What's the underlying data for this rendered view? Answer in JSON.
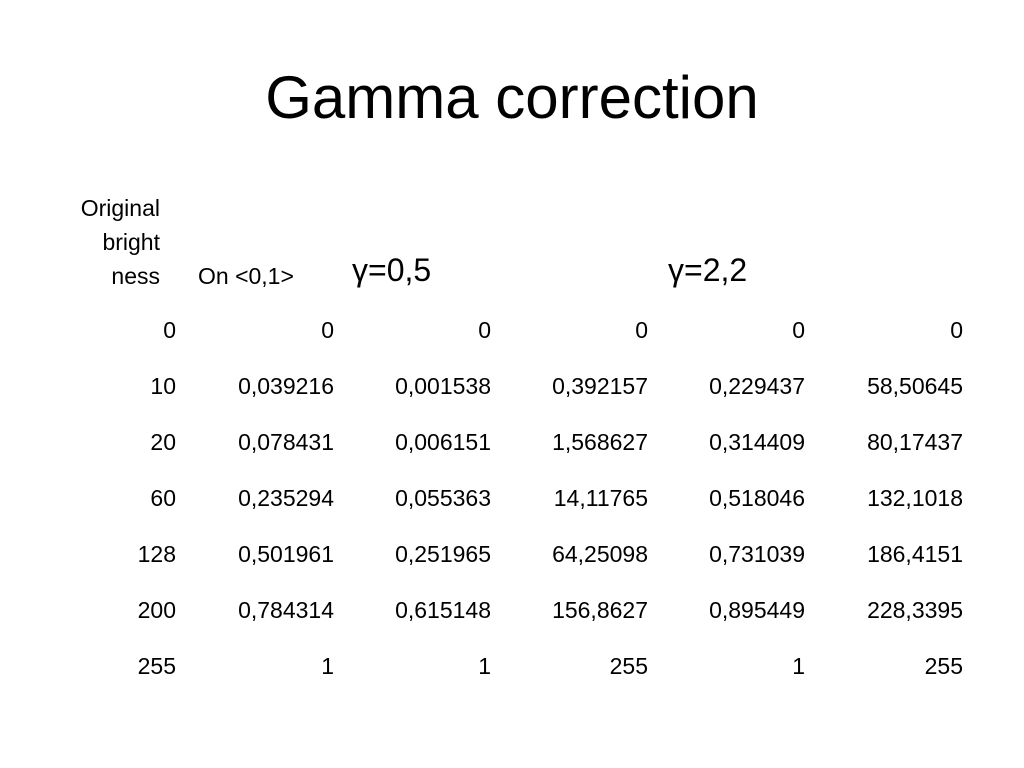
{
  "title": "Gamma correction",
  "headers": {
    "original_brightness": [
      "Original",
      "bright",
      "ness"
    ],
    "on_range": "On <0,1>",
    "gamma_05": "γ=0,5",
    "gamma_22": "γ=2,2"
  },
  "rows": [
    [
      "0",
      "0",
      "0",
      "0",
      "0",
      "0"
    ],
    [
      "10",
      "0,039216",
      "0,001538",
      "0,392157",
      "0,229437",
      "58,50645"
    ],
    [
      "20",
      "0,078431",
      "0,006151",
      "1,568627",
      "0,314409",
      "80,17437"
    ],
    [
      "60",
      "0,235294",
      "0,055363",
      "14,11765",
      "0,518046",
      "132,1018"
    ],
    [
      "128",
      "0,501961",
      "0,251965",
      "64,25098",
      "0,731039",
      "186,4151"
    ],
    [
      "200",
      "0,784314",
      "0,615148",
      "156,8627",
      "0,895449",
      "228,3395"
    ],
    [
      "255",
      "1",
      "1",
      "255",
      "1",
      "255"
    ]
  ]
}
